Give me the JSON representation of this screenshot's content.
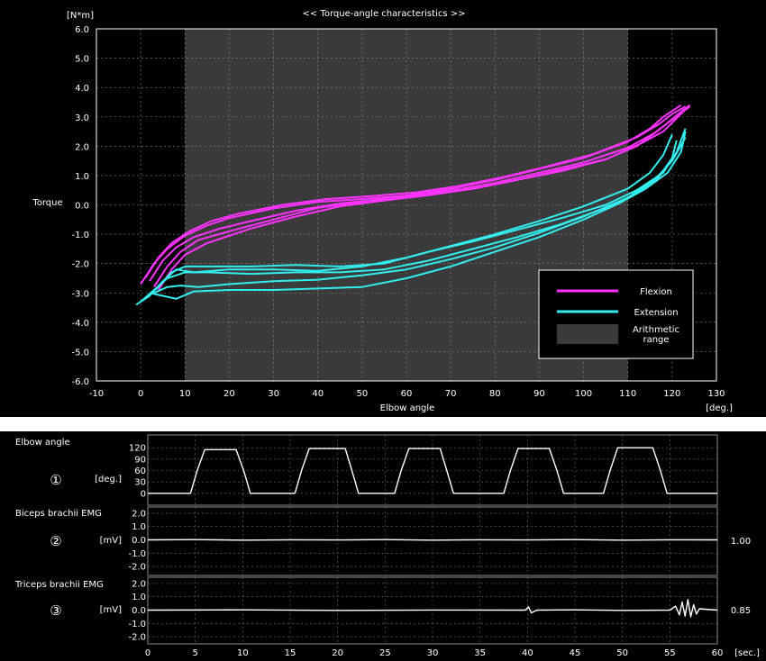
{
  "chart_data": [
    {
      "type": "line",
      "title": "<< Torque-angle characteristics >>",
      "ylabel": "Torque",
      "yunit": "[N*m]",
      "xlabel": "Elbow angle",
      "xunit": "[deg.]",
      "xlim": [
        -10,
        130
      ],
      "ylim": [
        -6,
        6
      ],
      "xticks": [
        "-10",
        "0",
        "10",
        "20",
        "30",
        "40",
        "50",
        "60",
        "70",
        "80",
        "90",
        "100",
        "110",
        "120",
        "130"
      ],
      "yticks": [
        "6.0",
        "5.0",
        "4.0",
        "3.0",
        "2.0",
        "1.0",
        "0.0",
        "-1.0",
        "-2.0",
        "-3.0",
        "-4.0",
        "-5.0",
        "-6.0"
      ],
      "grid": true,
      "arithmetic_range": [
        10,
        110
      ],
      "legend": {
        "position": "bottom-right",
        "entries": [
          {
            "label": "Flexion",
            "color": "#ff33ff"
          },
          {
            "label": "Extension",
            "color": "#33eeee"
          },
          {
            "label": "Arithmetic range",
            "color": "#3a3a3a"
          }
        ]
      },
      "series": [
        {
          "name": "Flexion",
          "color": "#ff33ff",
          "curves": [
            {
              "x": [
                0,
                3,
                6,
                10,
                15,
                20,
                30,
                40,
                50,
                60,
                70,
                80,
                90,
                100,
                110,
                115,
                118,
                120,
                122
              ],
              "y": [
                -2.7,
                -2.0,
                -1.5,
                -1.05,
                -0.7,
                -0.45,
                -0.12,
                0.1,
                0.2,
                0.32,
                0.55,
                0.85,
                1.22,
                1.6,
                2.15,
                2.6,
                3.0,
                3.2,
                3.4
              ]
            },
            {
              "x": [
                1,
                4,
                7,
                11,
                16,
                22,
                32,
                42,
                52,
                62,
                72,
                82,
                92,
                102,
                112,
                117,
                120,
                123
              ],
              "y": [
                -2.5,
                -1.8,
                -1.3,
                -0.9,
                -0.55,
                -0.3,
                0.0,
                0.2,
                0.3,
                0.42,
                0.65,
                0.95,
                1.32,
                1.72,
                2.3,
                2.75,
                3.1,
                3.35
              ]
            },
            {
              "x": [
                2,
                5,
                8,
                12,
                18,
                25,
                35,
                45,
                55,
                65,
                75,
                85,
                95,
                105,
                113,
                118,
                121,
                123
              ],
              "y": [
                -2.6,
                -1.9,
                -1.45,
                -1.1,
                -0.8,
                -0.55,
                -0.2,
                0.05,
                0.2,
                0.35,
                0.55,
                0.85,
                1.15,
                1.55,
                2.1,
                2.5,
                2.95,
                3.25
              ]
            },
            {
              "x": [
                3,
                6,
                9,
                13,
                20,
                30,
                40,
                50,
                60,
                70,
                80,
                90,
                100,
                110,
                116,
                120,
                124
              ],
              "y": [
                -2.8,
                -2.1,
                -1.6,
                -1.2,
                -0.9,
                -0.5,
                -0.1,
                0.1,
                0.28,
                0.48,
                0.75,
                1.1,
                1.45,
                1.95,
                2.45,
                2.9,
                3.35
              ]
            },
            {
              "x": [
                4,
                7,
                10,
                15,
                25,
                35,
                45,
                55,
                65,
                75,
                85,
                95,
                105,
                112,
                117,
                121,
                124
              ],
              "y": [
                -2.9,
                -2.2,
                -1.7,
                -1.3,
                -0.8,
                -0.4,
                -0.05,
                0.15,
                0.33,
                0.55,
                0.85,
                1.2,
                1.55,
                2.0,
                2.55,
                3.05,
                3.4
              ]
            }
          ]
        },
        {
          "name": "Extension",
          "color": "#33eeee",
          "curves": [
            {
              "x": [
                -1,
                2,
                5,
                8,
                12,
                20,
                30,
                40,
                50,
                60,
                70,
                80,
                90,
                100,
                110,
                115,
                118,
                120
              ],
              "y": [
                -3.4,
                -3.1,
                -2.6,
                -2.2,
                -2.3,
                -2.2,
                -2.2,
                -2.25,
                -2.1,
                -1.8,
                -1.4,
                -1.0,
                -0.55,
                -0.05,
                0.55,
                1.1,
                1.7,
                2.4
              ]
            },
            {
              "x": [
                0,
                3,
                6,
                10,
                15,
                25,
                35,
                45,
                55,
                65,
                75,
                85,
                95,
                105,
                112,
                117,
                120,
                121
              ],
              "y": [
                -3.3,
                -2.9,
                -2.5,
                -2.3,
                -2.3,
                -2.35,
                -2.3,
                -2.3,
                -2.2,
                -1.9,
                -1.5,
                -1.1,
                -0.65,
                -0.1,
                0.4,
                0.95,
                1.6,
                2.2
              ]
            },
            {
              "x": [
                1,
                4,
                7,
                10,
                15,
                25,
                35,
                45,
                55,
                65,
                75,
                85,
                95,
                105,
                112,
                118,
                121,
                123
              ],
              "y": [
                -3.2,
                -2.8,
                -2.3,
                -2.1,
                -2.1,
                -2.1,
                -2.05,
                -2.1,
                -2.0,
                -1.6,
                -1.25,
                -0.85,
                -0.45,
                0.0,
                0.5,
                1.1,
                1.8,
                2.6
              ]
            },
            {
              "x": [
                2,
                5,
                8,
                12,
                20,
                30,
                40,
                50,
                60,
                70,
                80,
                90,
                100,
                108,
                114,
                119,
                122,
                123
              ],
              "y": [
                -3.0,
                -3.1,
                -3.2,
                -2.95,
                -2.9,
                -2.9,
                -2.85,
                -2.8,
                -2.5,
                -2.1,
                -1.6,
                -1.1,
                -0.5,
                0.05,
                0.55,
                1.1,
                1.8,
                2.5
              ]
            },
            {
              "x": [
                3,
                6,
                9,
                13,
                20,
                30,
                40,
                50,
                60,
                70,
                80,
                90,
                100,
                110,
                116,
                120,
                123
              ],
              "y": [
                -3.0,
                -2.8,
                -2.75,
                -2.8,
                -2.7,
                -2.6,
                -2.55,
                -2.4,
                -2.2,
                -1.85,
                -1.45,
                -0.95,
                -0.4,
                0.25,
                0.85,
                1.5,
                2.3
              ]
            }
          ]
        }
      ]
    },
    {
      "type": "line",
      "title": "",
      "xunit": "[sec.]",
      "xlim": [
        0,
        60
      ],
      "xticks": [
        "0",
        "5",
        "10",
        "15",
        "20",
        "25",
        "30",
        "35",
        "40",
        "45",
        "50",
        "55",
        "60"
      ],
      "panels": [
        {
          "label": "Elbow angle",
          "marker": "①",
          "unit": "[deg.]",
          "yticks": [
            "120",
            "90",
            "60",
            "30",
            "0"
          ],
          "ylim": [
            -10,
            130
          ],
          "value": "",
          "segments": [
            {
              "t": [
                0,
                4.5,
                5.2,
                6,
                9.3,
                10.1,
                10.8,
                15.5,
                16.2,
                17,
                20.8,
                21.5,
                22.2,
                26,
                26.7,
                27.5,
                30.8,
                31.5,
                32.2,
                37.5,
                38.2,
                39,
                42.3,
                43.1,
                43.8,
                48,
                48.7,
                49.5,
                53.2,
                54,
                54.7,
                60
              ],
              "y": [
                0,
                0,
                60,
                115,
                115,
                60,
                0,
                0,
                60,
                118,
                118,
                60,
                0,
                0,
                60,
                118,
                118,
                60,
                0,
                0,
                60,
                118,
                118,
                60,
                0,
                0,
                60,
                120,
                120,
                60,
                0,
                0
              ]
            }
          ]
        },
        {
          "label": "Biceps brachii EMG",
          "marker": "②",
          "unit": "[mV]",
          "yticks": [
            "2.0",
            "1.0",
            "0.0",
            "-1.0",
            "-2.0"
          ],
          "ylim": [
            -2.2,
            2.2
          ],
          "value": "1.00",
          "segments": [
            {
              "t": [
                0,
                5,
                10,
                15,
                20,
                25,
                30,
                35,
                40,
                45,
                50,
                55,
                60
              ],
              "y": [
                0,
                0.02,
                -0.02,
                0.01,
                -0.01,
                0.02,
                -0.02,
                0.01,
                -0.01,
                0.02,
                -0.02,
                0.01,
                0
              ]
            }
          ]
        },
        {
          "label": "Triceps brachii EMG",
          "marker": "③",
          "unit": "[mV]",
          "yticks": [
            "2.0",
            "1.0",
            "0.0",
            "-1.0",
            "-2.0"
          ],
          "ylim": [
            -2.2,
            2.2
          ],
          "value": "0.85",
          "segments": [
            {
              "t": [
                0,
                10,
                20,
                30,
                39.8,
                40.1,
                40.4,
                41,
                45,
                50,
                55,
                55.6,
                56,
                56.3,
                56.6,
                56.9,
                57.2,
                57.5,
                57.8,
                58.1,
                60
              ],
              "y": [
                0,
                0.02,
                -0.02,
                0.01,
                0,
                0.25,
                -0.2,
                0,
                0.02,
                -0.02,
                0,
                0.3,
                -0.35,
                0.6,
                -0.45,
                0.8,
                -0.5,
                0.4,
                -0.3,
                0.1,
                0
              ]
            }
          ]
        }
      ]
    }
  ]
}
